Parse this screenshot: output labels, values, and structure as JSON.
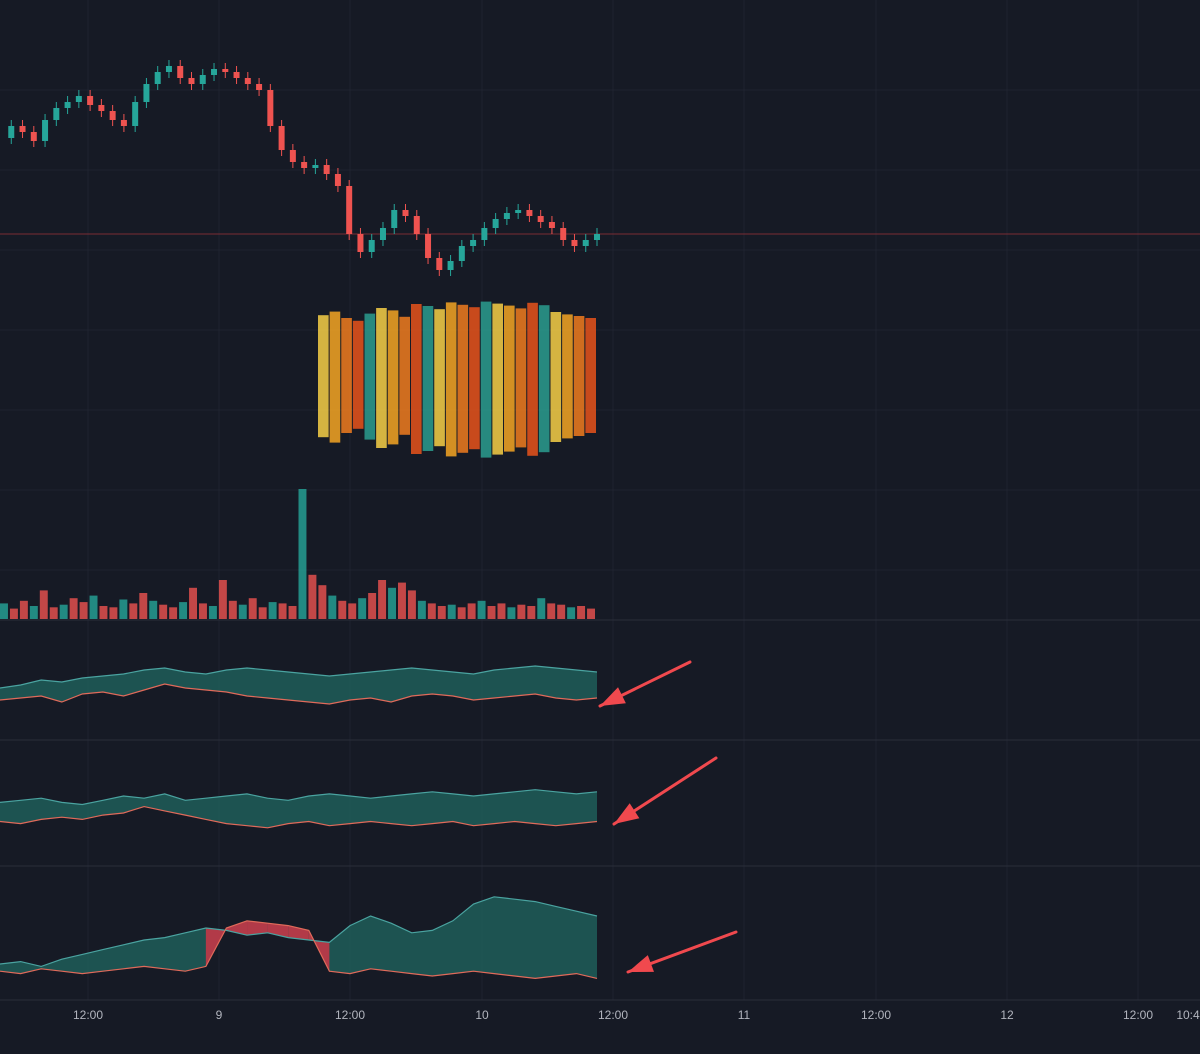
{
  "colors": {
    "background": "#161a25",
    "grid": "#1f2330",
    "pane_separator": "#2a2e39",
    "up": "#26a69a",
    "down": "#ef5350",
    "price_line": "#7a2c34",
    "fill_up": "#1e5a56",
    "fill_down": "#b23a48",
    "arrow": "#f0494e",
    "axis_text": "#b2b5be",
    "heat": [
      "#f7d046",
      "#f5a623",
      "#f07c1e",
      "#e8541b",
      "#2a9d8f",
      "#6b5a2a"
    ]
  },
  "x_axis": {
    "ticks": [
      "12:00",
      "9",
      "12:00",
      "10",
      "12:00",
      "11",
      "12:00",
      "12",
      "12:00",
      "10:4"
    ]
  },
  "chart_data": [
    {
      "type": "line",
      "pane": "price",
      "style": "candlestick",
      "title": "",
      "xlabel": "",
      "ylabel": "",
      "grid": true,
      "last_price_line": true,
      "series": [
        {
          "values": [
            74,
            78,
            76,
            73,
            80,
            84,
            86,
            88,
            85,
            83,
            80,
            78,
            86,
            92,
            96,
            98,
            94,
            92,
            95,
            97,
            96,
            94,
            92,
            90,
            78,
            70,
            66,
            64,
            65,
            62,
            58,
            42,
            36,
            40,
            44,
            50,
            48,
            42,
            34,
            30,
            33,
            38,
            40,
            44,
            47,
            49,
            50,
            48,
            46,
            44,
            40,
            38,
            40,
            42
          ]
        }
      ]
    },
    {
      "type": "heatmap",
      "pane": "price-overlay",
      "title": "",
      "values": [
        0.62,
        0.71,
        0.55,
        0.48,
        0.66,
        0.8,
        0.74,
        0.58,
        0.9,
        0.85,
        0.77,
        0.94,
        0.88,
        0.82,
        0.96,
        0.91,
        0.86,
        0.79,
        0.93,
        0.87,
        0.7,
        0.64,
        0.6,
        0.55
      ]
    },
    {
      "type": "bar",
      "pane": "volume",
      "title": "",
      "values": [
        12,
        8,
        14,
        10,
        22,
        9,
        11,
        16,
        13,
        18,
        10,
        9,
        15,
        12,
        20,
        14,
        11,
        9,
        13,
        24,
        12,
        10,
        30,
        14,
        11,
        16,
        9,
        13,
        12,
        10,
        100,
        34,
        26,
        18,
        14,
        12,
        16,
        20,
        30,
        24,
        28,
        22,
        14,
        12,
        10,
        11,
        9,
        12,
        14,
        10,
        12,
        9,
        11,
        10,
        16,
        12,
        11,
        9,
        10,
        8
      ]
    },
    {
      "type": "area",
      "pane": "oscillator-1",
      "title": "",
      "series": [
        {
          "values": [
            52,
            55,
            60,
            58,
            62,
            64,
            66,
            70,
            72,
            68,
            66,
            70,
            72,
            70,
            68,
            66,
            64,
            66,
            68,
            70,
            72,
            70,
            68,
            66,
            70,
            72,
            74,
            72,
            70,
            68
          ]
        },
        {
          "values": [
            40,
            42,
            44,
            38,
            46,
            48,
            44,
            50,
            56,
            52,
            50,
            48,
            44,
            42,
            40,
            38,
            36,
            40,
            42,
            38,
            44,
            46,
            44,
            40,
            42,
            44,
            46,
            42,
            40,
            42
          ]
        }
      ]
    },
    {
      "type": "area",
      "pane": "oscillator-2",
      "title": "",
      "series": [
        {
          "values": [
            60,
            62,
            64,
            60,
            58,
            62,
            66,
            64,
            68,
            62,
            64,
            66,
            68,
            64,
            62,
            66,
            68,
            66,
            64,
            66,
            68,
            70,
            68,
            66,
            68,
            70,
            72,
            70,
            68,
            70
          ]
        },
        {
          "values": [
            42,
            40,
            44,
            46,
            44,
            48,
            50,
            56,
            52,
            48,
            44,
            40,
            38,
            36,
            40,
            42,
            38,
            40,
            42,
            40,
            38,
            40,
            42,
            38,
            40,
            42,
            40,
            38,
            40,
            42
          ]
        }
      ]
    },
    {
      "type": "area",
      "pane": "oscillator-3",
      "title": "",
      "series": [
        {
          "values": [
            30,
            32,
            28,
            34,
            38,
            42,
            46,
            50,
            52,
            56,
            60,
            58,
            54,
            56,
            52,
            50,
            48,
            62,
            70,
            64,
            56,
            58,
            66,
            80,
            86,
            84,
            82,
            78,
            74,
            70
          ]
        },
        {
          "values": [
            24,
            22,
            26,
            24,
            22,
            24,
            26,
            28,
            26,
            24,
            28,
            60,
            66,
            64,
            62,
            58,
            24,
            22,
            26,
            24,
            22,
            20,
            22,
            24,
            22,
            20,
            18,
            20,
            22,
            18
          ]
        }
      ]
    }
  ]
}
